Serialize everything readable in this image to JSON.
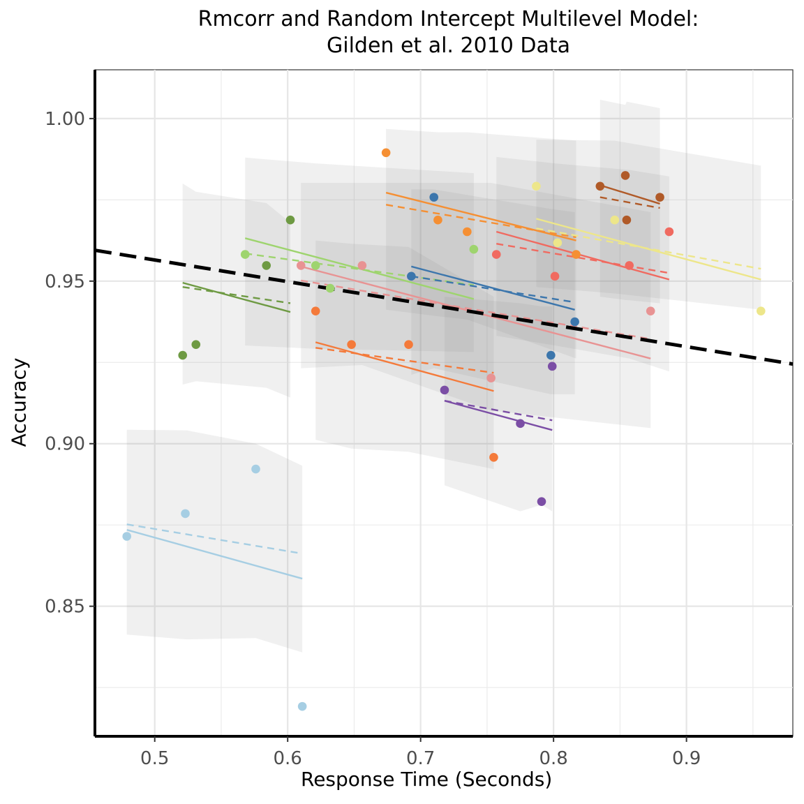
{
  "chart_data": {
    "type": "scatter",
    "title": "Rmcorr and Random Intercept Multilevel Model:",
    "subtitle": "Gilden et al. 2010 Data",
    "xlabel": "Response Time (Seconds)",
    "ylabel": "Accuracy",
    "xlim": [
      0.455,
      0.98
    ],
    "ylim": [
      0.81,
      1.015
    ],
    "xticks": [
      "0.5",
      "0.6",
      "0.7",
      "0.8",
      "0.9"
    ],
    "yticks": [
      "0.85",
      "0.90",
      "0.95",
      "1.00"
    ],
    "grid": true,
    "overall_line": {
      "color": "#000000",
      "style": "dashed",
      "x": [
        0.455,
        0.98
      ],
      "y": [
        0.9595,
        0.9245
      ]
    },
    "series": [
      {
        "color": "#a6cee3",
        "points": [
          [
            0.479,
            0.8715
          ],
          [
            0.523,
            0.8785
          ],
          [
            0.576,
            0.8922
          ],
          [
            0.611,
            0.8192
          ]
        ],
        "rmcorr": [
          [
            0.479,
            0.8735
          ],
          [
            0.611,
            0.8585
          ]
        ],
        "mlm": [
          [
            0.479,
            0.8752
          ],
          [
            0.611,
            0.8662
          ]
        ],
        "band": [
          [
            0.479,
            0.9043,
            0.8413
          ],
          [
            0.524,
            0.9041,
            0.8398
          ],
          [
            0.576,
            0.9,
            0.8402
          ],
          [
            0.611,
            0.8932,
            0.8358
          ]
        ]
      },
      {
        "color": "#6e9a43",
        "points": [
          [
            0.521,
            0.9272
          ],
          [
            0.531,
            0.9305
          ],
          [
            0.584,
            0.9548
          ],
          [
            0.602,
            0.9688
          ]
        ],
        "rmcorr": [
          [
            0.521,
            0.9495
          ],
          [
            0.602,
            0.9405
          ]
        ],
        "mlm": [
          [
            0.521,
            0.9482
          ],
          [
            0.602,
            0.9432
          ]
        ],
        "band": [
          [
            0.521,
            0.98,
            0.9182
          ],
          [
            0.531,
            0.9775,
            0.9192
          ],
          [
            0.584,
            0.974,
            0.9172
          ],
          [
            0.602,
            0.968,
            0.9142
          ]
        ]
      },
      {
        "color": "#9ed46e",
        "points": [
          [
            0.568,
            0.9582
          ],
          [
            0.621,
            0.9548
          ],
          [
            0.632,
            0.9478
          ],
          [
            0.74,
            0.9598
          ]
        ],
        "rmcorr": [
          [
            0.568,
            0.9632
          ],
          [
            0.74,
            0.9445
          ]
        ],
        "mlm": [
          [
            0.568,
            0.9585
          ],
          [
            0.74,
            0.9488
          ]
        ],
        "band": [
          [
            0.568,
            0.988,
            0.9302
          ],
          [
            0.621,
            0.9862,
            0.9292
          ],
          [
            0.74,
            0.9832,
            0.9282
          ]
        ]
      },
      {
        "color": "#e89393",
        "points": [
          [
            0.61,
            0.9548
          ],
          [
            0.656,
            0.9548
          ],
          [
            0.753,
            0.9202
          ],
          [
            0.873,
            0.9408
          ]
        ],
        "rmcorr": [
          [
            0.61,
            0.9545
          ],
          [
            0.873,
            0.9262
          ]
        ],
        "mlm": [
          [
            0.61,
            0.9502
          ],
          [
            0.873,
            0.9322
          ]
        ],
        "band": [
          [
            0.61,
            0.9802,
            0.9232
          ],
          [
            0.656,
            0.9802,
            0.9242
          ],
          [
            0.753,
            0.9802,
            0.9102
          ],
          [
            0.873,
            0.9712,
            0.9048
          ]
        ]
      },
      {
        "color": "#f47a3a",
        "points": [
          [
            0.621,
            0.9408
          ],
          [
            0.648,
            0.9305
          ],
          [
            0.691,
            0.9305
          ],
          [
            0.755,
            0.8958
          ]
        ],
        "rmcorr": [
          [
            0.621,
            0.9312
          ],
          [
            0.755,
            0.9162
          ]
        ],
        "mlm": [
          [
            0.621,
            0.9295
          ],
          [
            0.755,
            0.9218
          ]
        ],
        "band": [
          [
            0.621,
            0.9625,
            0.9012
          ],
          [
            0.648,
            0.9615,
            0.8985
          ],
          [
            0.691,
            0.9605,
            0.8975
          ],
          [
            0.755,
            0.9452,
            0.8922
          ]
        ]
      },
      {
        "color": "#f58f33",
        "points": [
          [
            0.674,
            0.9895
          ],
          [
            0.713,
            0.9688
          ],
          [
            0.735,
            0.9652
          ],
          [
            0.817,
            0.9582
          ]
        ],
        "rmcorr": [
          [
            0.674,
            0.9772
          ],
          [
            0.817,
            0.9625
          ]
        ],
        "mlm": [
          [
            0.674,
            0.9735
          ],
          [
            0.817,
            0.9635
          ]
        ],
        "band": [
          [
            0.674,
            0.9968,
            0.9412
          ],
          [
            0.713,
            0.9958,
            0.9392
          ],
          [
            0.735,
            0.9958,
            0.9382
          ],
          [
            0.817,
            0.9932,
            0.9262
          ]
        ]
      },
      {
        "color": "#3c76ac",
        "points": [
          [
            0.693,
            0.9515
          ],
          [
            0.71,
            0.9758
          ],
          [
            0.798,
            0.9272
          ],
          [
            0.816,
            0.9375
          ]
        ],
        "rmcorr": [
          [
            0.693,
            0.9545
          ],
          [
            0.816,
            0.9412
          ]
        ],
        "mlm": [
          [
            0.693,
            0.9515
          ],
          [
            0.816,
            0.9435
          ]
        ],
        "band": [
          [
            0.693,
            0.9782,
            0.9212
          ],
          [
            0.71,
            0.9782,
            0.9232
          ],
          [
            0.798,
            0.9722,
            0.9152
          ],
          [
            0.816,
            0.9712,
            0.9152
          ]
        ]
      },
      {
        "color": "#7b4ea5",
        "points": [
          [
            0.718,
            0.9165
          ],
          [
            0.775,
            0.9062
          ],
          [
            0.791,
            0.8822
          ],
          [
            0.799,
            0.9238
          ]
        ],
        "rmcorr": [
          [
            0.718,
            0.9132
          ],
          [
            0.799,
            0.9042
          ]
        ],
        "mlm": [
          [
            0.718,
            0.9132
          ],
          [
            0.799,
            0.9072
          ]
        ],
        "band": [
          [
            0.718,
            0.9452,
            0.8872
          ],
          [
            0.775,
            0.9432,
            0.8792
          ],
          [
            0.791,
            0.9422,
            0.8812
          ],
          [
            0.799,
            0.9422,
            0.8792
          ]
        ]
      },
      {
        "color": "#f06a60",
        "points": [
          [
            0.757,
            0.9582
          ],
          [
            0.801,
            0.9515
          ],
          [
            0.857,
            0.9548
          ],
          [
            0.887,
            0.9652
          ]
        ],
        "rmcorr": [
          [
            0.757,
            0.9652
          ],
          [
            0.887,
            0.9505
          ]
        ],
        "mlm": [
          [
            0.757,
            0.9615
          ],
          [
            0.887,
            0.9525
          ]
        ],
        "band": [
          [
            0.757,
            0.9882,
            0.9332
          ],
          [
            0.801,
            0.9862,
            0.9302
          ],
          [
            0.857,
            0.9842,
            0.9262
          ],
          [
            0.887,
            0.9822,
            0.9222
          ]
        ]
      },
      {
        "color": "#ede68a",
        "points": [
          [
            0.787,
            0.9792
          ],
          [
            0.803,
            0.9618
          ],
          [
            0.846,
            0.9688
          ],
          [
            0.956,
            0.9408
          ]
        ],
        "rmcorr": [
          [
            0.787,
            0.9692
          ],
          [
            0.956,
            0.9505
          ]
        ],
        "mlm": [
          [
            0.787,
            0.9662
          ],
          [
            0.956,
            0.9538
          ]
        ],
        "band": [
          [
            0.787,
            0.9935,
            0.9482
          ],
          [
            0.846,
            0.9932,
            0.9462
          ],
          [
            0.956,
            0.9855,
            0.9412
          ]
        ]
      },
      {
        "color": "#b05a28",
        "points": [
          [
            0.835,
            0.9792
          ],
          [
            0.854,
            0.9825
          ],
          [
            0.855,
            0.9688
          ],
          [
            0.88,
            0.9758
          ]
        ],
        "rmcorr": [
          [
            0.835,
            0.9795
          ],
          [
            0.88,
            0.9738
          ]
        ],
        "mlm": [
          [
            0.835,
            0.9758
          ],
          [
            0.88,
            0.9725
          ]
        ],
        "band": [
          [
            0.835,
            1.0058,
            0.9452
          ],
          [
            0.854,
            1.0042,
            0.9442
          ],
          [
            0.855,
            1.0052,
            0.9442
          ],
          [
            0.88,
            1.0032,
            0.9432
          ]
        ]
      }
    ]
  }
}
